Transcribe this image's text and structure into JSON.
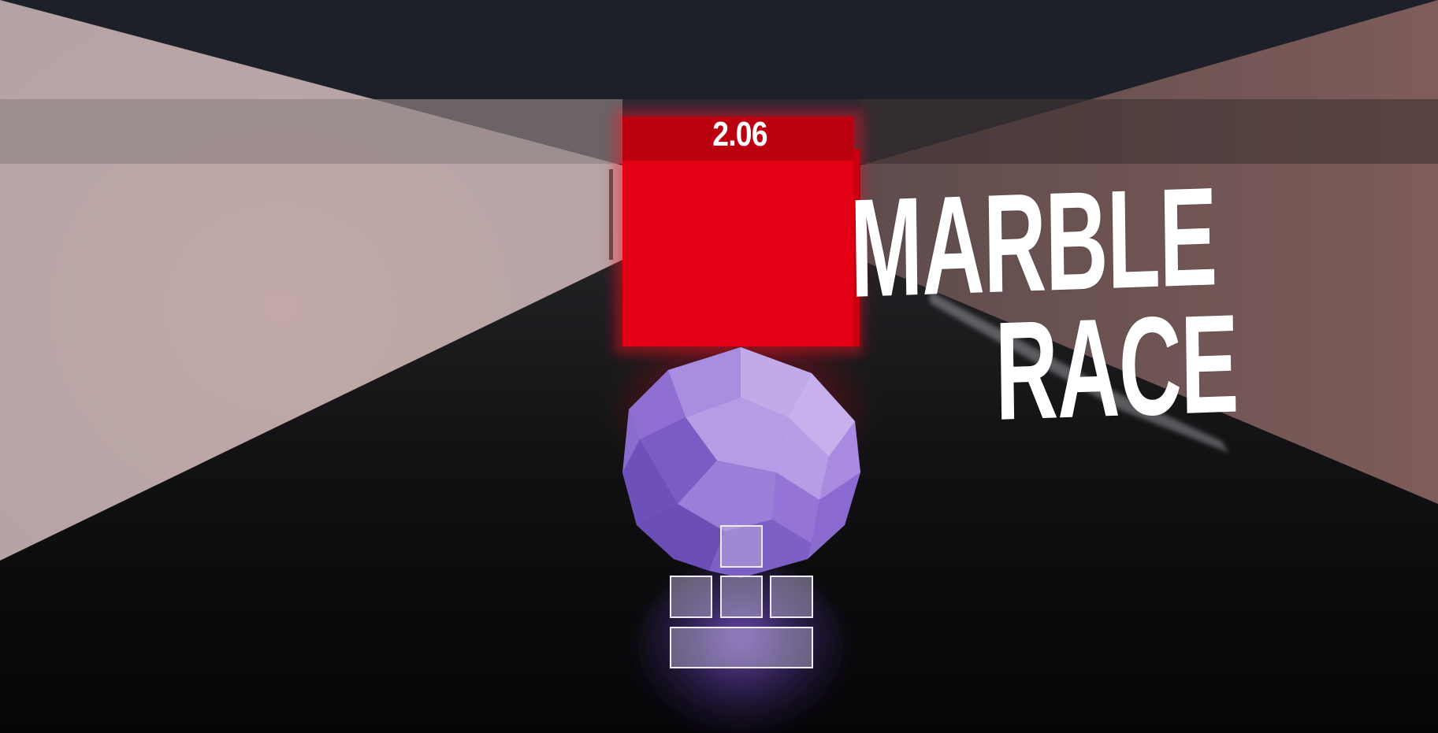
{
  "hud": {
    "timer": "2.06"
  },
  "title": {
    "line1": "MARBLE",
    "line2": "RACE"
  },
  "controls": {
    "keys": [
      "up",
      "left",
      "down",
      "right",
      "space"
    ]
  },
  "colors": {
    "sky": "#1e2029",
    "left_wall": "#b8a5a6",
    "right_wall": "#7b5e5c",
    "floor": "#0d0d0f",
    "obstacle": "#e40014",
    "obstacle_band": "#bb0010",
    "marble": "#9a7fd6",
    "text": "#ffffff"
  }
}
